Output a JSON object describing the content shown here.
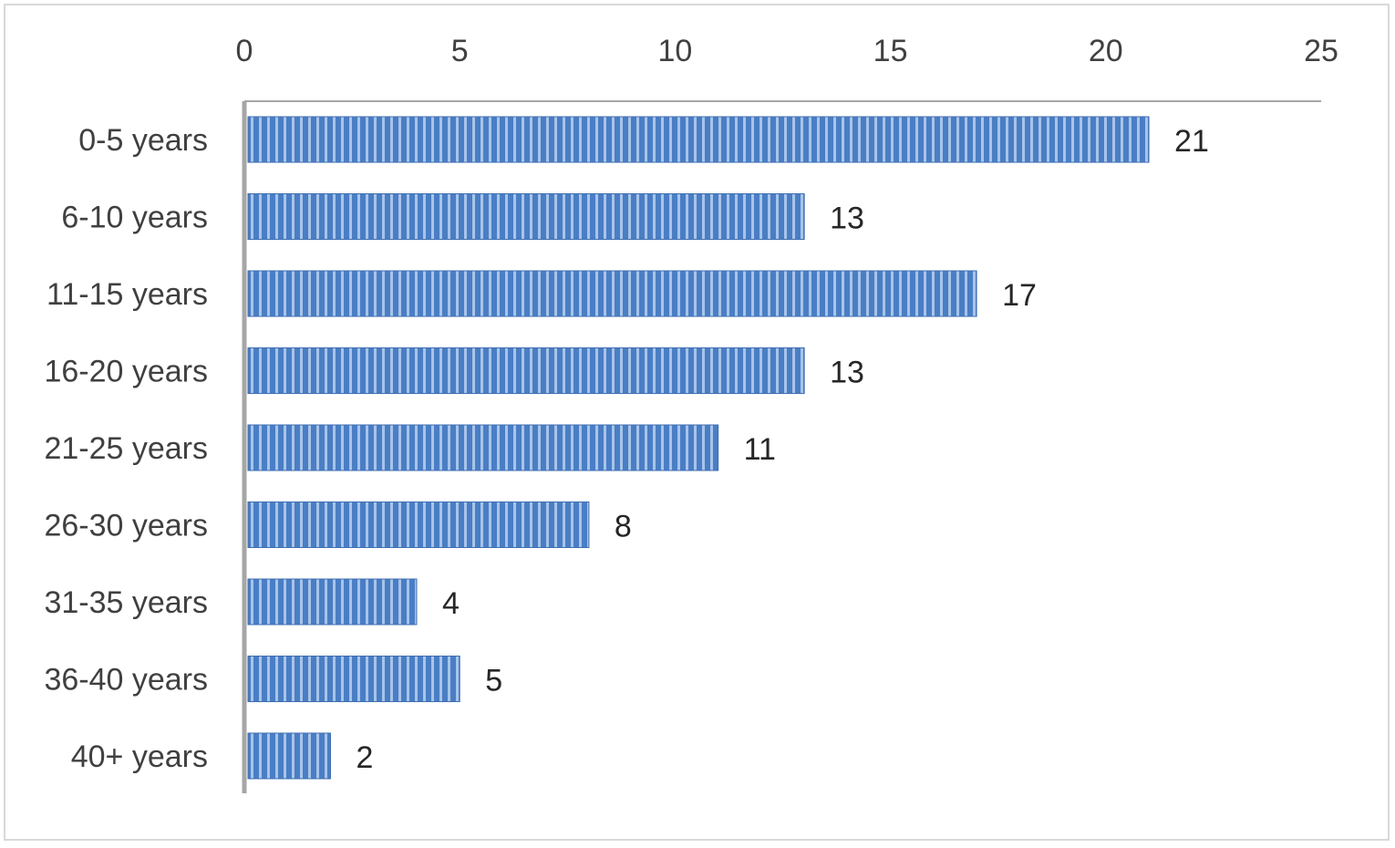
{
  "chart_data": {
    "type": "bar",
    "orientation": "horizontal",
    "categories": [
      "0-5 years",
      "6-10 years",
      "11-15 years",
      "16-20 years",
      "21-25 years",
      "26-30 years",
      "31-35 years",
      "36-40 years",
      "40+ years"
    ],
    "values": [
      21,
      13,
      17,
      13,
      11,
      8,
      4,
      5,
      2
    ],
    "title": "",
    "xlabel": "",
    "ylabel": "",
    "xlim": [
      0,
      25
    ],
    "x_ticks": [
      0,
      5,
      10,
      15,
      20,
      25
    ],
    "x_axis_position": "top",
    "grid": false,
    "legend": "none",
    "data_labels": true,
    "bar_pattern": "vertical-stripes",
    "bar_color": "#4a7ec4",
    "bar_highlight_color": "#a8c4ea",
    "bar_edge_color": "#3f6eb0"
  }
}
